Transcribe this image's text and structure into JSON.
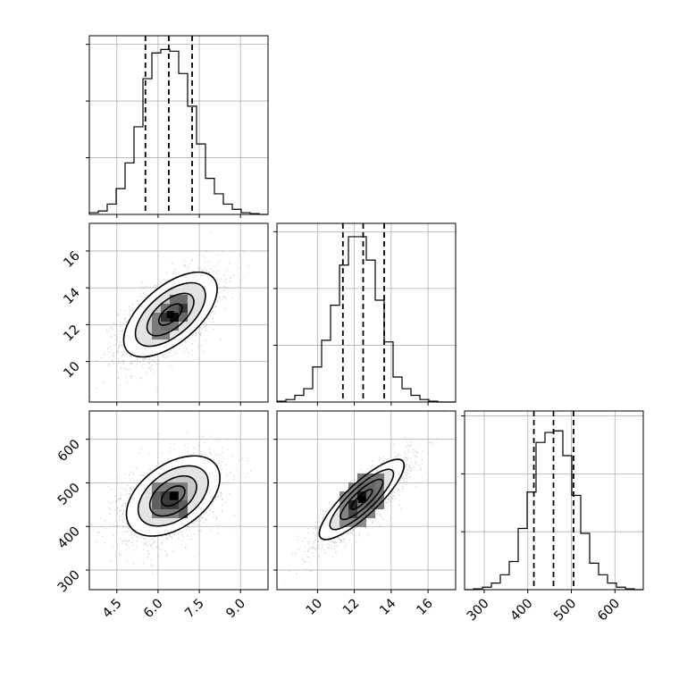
{
  "chart_data": {
    "type": "corner",
    "grid": true,
    "parameters": [
      {
        "range": [
          3.5,
          10.0
        ],
        "ticks": [
          4.5,
          6.0,
          7.5,
          9.0
        ],
        "tick_labels": [
          "4.5",
          "6.0",
          "7.5",
          "9.0"
        ],
        "quantiles": [
          5.54,
          6.39,
          7.24
        ],
        "mean": 6.4,
        "sd": 0.85
      },
      {
        "range": [
          7.8,
          17.5
        ],
        "ticks": [
          10,
          12,
          14,
          16
        ],
        "tick_labels": [
          "10",
          "12",
          "14",
          "16"
        ],
        "quantiles": [
          11.38,
          12.48,
          13.62
        ],
        "mean": 12.5,
        "sd": 1.15
      },
      {
        "range": [
          255,
          665
        ],
        "ticks": [
          300,
          400,
          500,
          600
        ],
        "tick_labels": [
          "300",
          "400",
          "500",
          "600"
        ],
        "quantiles": [
          414,
          459,
          505
        ],
        "mean": 460,
        "sd": 46
      }
    ],
    "histograms": [
      {
        "edges": [
          3.5,
          3.825,
          4.15,
          4.475,
          4.8,
          5.125,
          5.45,
          5.775,
          6.1,
          6.425,
          6.75,
          7.075,
          7.4,
          7.725,
          8.05,
          8.375,
          8.7,
          9.025,
          9.35,
          9.675,
          10.0
        ],
        "counts": [
          1,
          2,
          6,
          15,
          30,
          51,
          79,
          94,
          96,
          95,
          82,
          63,
          41,
          21,
          12,
          6,
          3,
          1,
          0.5,
          0
        ],
        "ymax": 104,
        "yticks": [
          33,
          66,
          99
        ]
      },
      {
        "edges": [
          7.8,
          8.285,
          8.77,
          9.255,
          9.74,
          10.225,
          10.71,
          11.195,
          11.68,
          12.165,
          12.65,
          13.135,
          13.62,
          14.105,
          14.59,
          15.075,
          15.56,
          16.045,
          16.53,
          17.015,
          17.5
        ],
        "counts": [
          0.5,
          1.5,
          4,
          8,
          21,
          37,
          58,
          82,
          99,
          99,
          85,
          61,
          36,
          15,
          8,
          4,
          1.5,
          0.5,
          0,
          0
        ],
        "ymax": 107,
        "yticks": [
          34,
          68,
          102
        ]
      },
      {
        "edges": [
          255,
          275.5,
          296,
          316.5,
          337,
          357.5,
          378,
          398.5,
          419,
          439.5,
          460,
          480.5,
          501,
          521.5,
          542,
          562.5,
          583,
          603.5,
          624,
          644.5,
          665
        ],
        "counts": [
          0,
          0.5,
          1.5,
          4,
          9,
          17,
          37,
          59,
          89,
          95,
          96,
          81,
          57,
          34,
          16,
          9,
          4,
          1.5,
          0.5,
          0
        ],
        "ymax": 108,
        "yticks": [
          35,
          70,
          105
        ]
      }
    ],
    "pairs": [
      {
        "x": 0,
        "y": 1,
        "rho": 0.6,
        "peak": [
          6.45,
          12.55
        ],
        "hist_cells": [
          [
            6.1,
            6.75,
            11.68,
            13.135,
            0.5
          ],
          [
            6.425,
            7.075,
            12.165,
            13.62,
            0.55
          ],
          [
            5.775,
            6.425,
            11.195,
            12.65,
            0.45
          ],
          [
            6.1,
            6.75,
            12.165,
            12.65,
            0.85
          ],
          [
            6.425,
            6.75,
            12.165,
            12.65,
            0.95
          ],
          [
            6.1,
            6.425,
            12.165,
            12.65,
            0.75
          ],
          [
            6.75,
            7.075,
            12.65,
            13.135,
            0.75
          ]
        ]
      },
      {
        "x": 1,
        "y": 2,
        "rho": 0.85,
        "peak": [
          12.4,
          462
        ],
        "hist_cells": [
          [
            11.68,
            13.135,
            419,
            501,
            0.45
          ],
          [
            12.165,
            13.62,
            439.5,
            521.5,
            0.5
          ],
          [
            11.195,
            12.65,
            398.5,
            480.5,
            0.4
          ],
          [
            11.68,
            12.165,
            439.5,
            460,
            0.9
          ],
          [
            12.165,
            12.65,
            460,
            480.5,
            0.95
          ],
          [
            11.68,
            12.165,
            419,
            439.5,
            0.7
          ]
        ]
      },
      {
        "x": 0,
        "y": 2,
        "rho": 0.45,
        "peak": [
          6.55,
          470
        ],
        "hist_cells": [
          [
            5.775,
            7.075,
            419,
            501,
            0.45
          ],
          [
            6.1,
            6.75,
            439.5,
            480.5,
            0.75
          ],
          [
            6.425,
            6.75,
            460,
            480.5,
            0.95
          ],
          [
            5.775,
            6.1,
            439.5,
            480.5,
            0.55
          ],
          [
            6.75,
            7.075,
            419,
            460,
            0.55
          ]
        ]
      }
    ]
  }
}
